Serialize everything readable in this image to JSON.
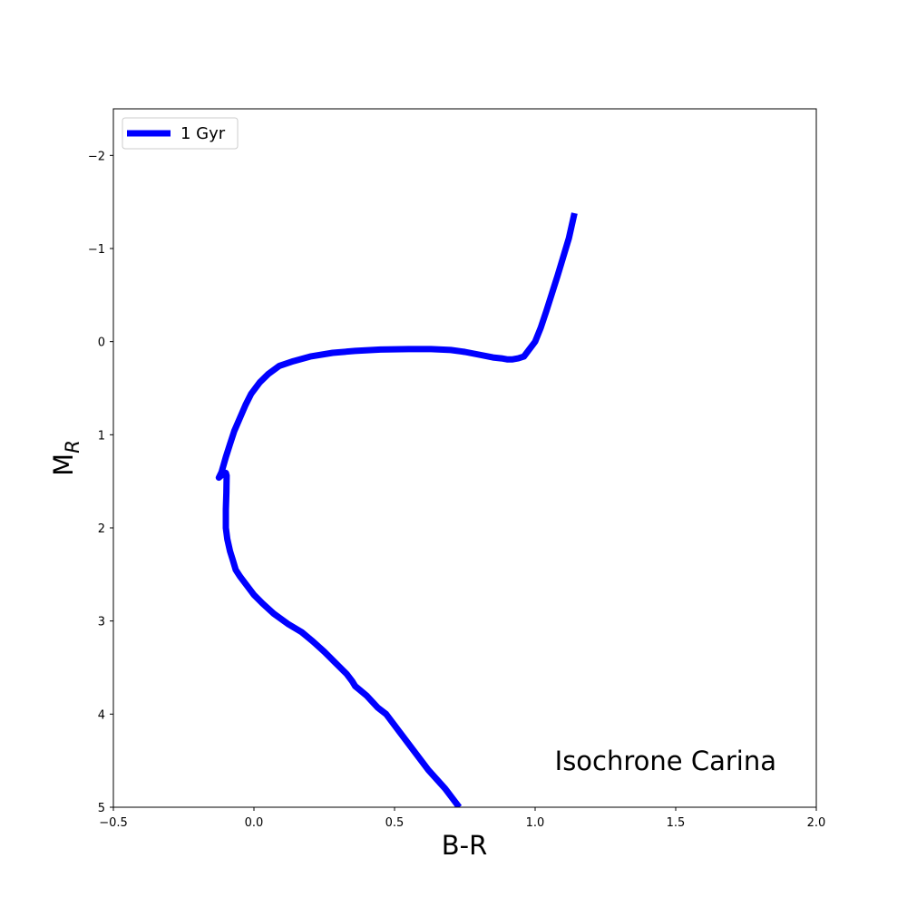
{
  "chart_data": {
    "type": "line",
    "xlabel": "B-R",
    "ylabel": {
      "main": "M",
      "sub": "R"
    },
    "xlim": [
      -0.5,
      2.0
    ],
    "ylim": [
      5,
      -2.5
    ],
    "y_inverted": true,
    "xticks": [
      -0.5,
      0.0,
      0.5,
      1.0,
      1.5,
      2.0
    ],
    "xtick_labels": [
      "−0.5",
      "0.0",
      "0.5",
      "1.0",
      "1.5",
      "2.0"
    ],
    "yticks": [
      -2,
      -1,
      0,
      1,
      2,
      3,
      4,
      5
    ],
    "ytick_labels": [
      "−2",
      "−1",
      "0",
      "1",
      "2",
      "3",
      "4",
      "5"
    ],
    "grid": false,
    "legend_position": "top-left",
    "annotation": "Isochrone Carina",
    "annotation_position": "bottom-right",
    "series": [
      {
        "name": "1 Gyr",
        "color": "#0000ff",
        "x": [
          0.73,
          0.68,
          0.62,
          0.57,
          0.52,
          0.47,
          0.44,
          0.4,
          0.36,
          0.35,
          0.33,
          0.29,
          0.25,
          0.21,
          0.17,
          0.12,
          0.07,
          0.03,
          0.0,
          -0.025,
          -0.05,
          -0.065,
          -0.075,
          -0.085,
          -0.095,
          -0.1,
          -0.1,
          -0.098,
          -0.097,
          -0.1,
          -0.11,
          -0.125,
          -0.12,
          -0.115,
          -0.1,
          -0.085,
          -0.07,
          -0.05,
          -0.03,
          -0.01,
          0.02,
          0.05,
          0.09,
          0.14,
          0.2,
          0.28,
          0.36,
          0.45,
          0.55,
          0.63,
          0.7,
          0.75,
          0.8,
          0.85,
          0.88,
          0.9,
          0.92,
          0.94,
          0.96,
          0.97,
          0.98,
          1.0,
          1.02,
          1.04,
          1.06,
          1.08,
          1.1,
          1.12,
          1.14
        ],
        "y": [
          5.0,
          4.8,
          4.6,
          4.4,
          4.2,
          4.0,
          3.93,
          3.8,
          3.7,
          3.65,
          3.57,
          3.45,
          3.33,
          3.22,
          3.12,
          3.03,
          2.92,
          2.81,
          2.72,
          2.62,
          2.52,
          2.45,
          2.35,
          2.25,
          2.12,
          2.0,
          1.8,
          1.62,
          1.44,
          1.41,
          1.42,
          1.46,
          1.43,
          1.4,
          1.24,
          1.1,
          0.96,
          0.82,
          0.68,
          0.56,
          0.44,
          0.35,
          0.26,
          0.21,
          0.16,
          0.12,
          0.1,
          0.085,
          0.08,
          0.08,
          0.09,
          0.11,
          0.14,
          0.17,
          0.18,
          0.19,
          0.19,
          0.18,
          0.16,
          0.12,
          0.08,
          0.0,
          -0.15,
          -0.33,
          -0.52,
          -0.71,
          -0.91,
          -1.11,
          -1.38
        ]
      }
    ]
  }
}
